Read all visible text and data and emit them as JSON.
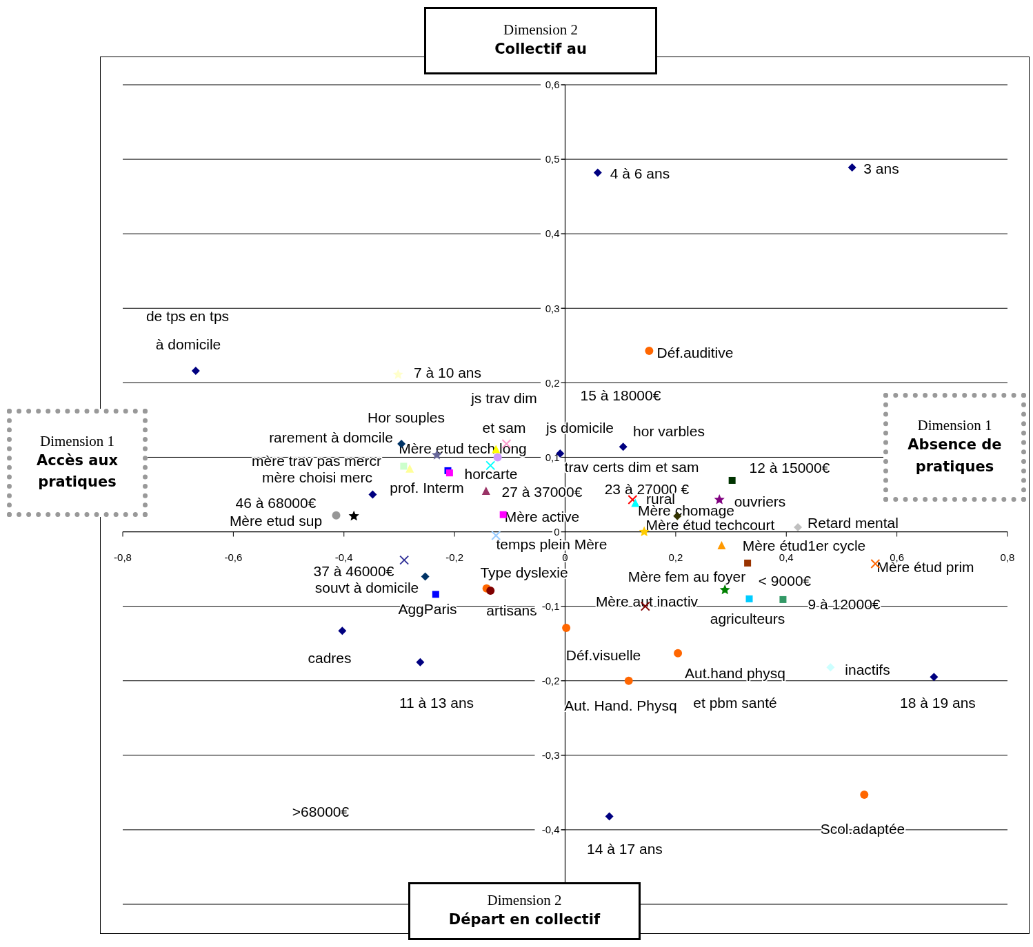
{
  "chart_data": {
    "type": "scatter",
    "xlim": [
      -0.8,
      0.8
    ],
    "xticks": [
      {
        "value": -0.8,
        "label": "-0,8"
      },
      {
        "value": -0.6,
        "label": "-0,6"
      },
      {
        "value": -0.4,
        "label": "-0,4"
      },
      {
        "value": -0.2,
        "label": "-0,2"
      },
      0,
      {
        "value": 0.2,
        "label": "0,2"
      },
      {
        "value": 0.4,
        "label": "0,4"
      },
      {
        "value": 0.6,
        "label": "0,6"
      },
      {
        "value": 0.8,
        "label": "0,8"
      }
    ],
    "ylim": [
      -0.5,
      0.6
    ],
    "yticks": [
      {
        "value": -0.5,
        "label": null
      },
      {
        "value": -0.4,
        "label": "-0,4"
      },
      {
        "value": -0.3,
        "label": "-0,3"
      },
      {
        "value": -0.2,
        "label": "-0,2"
      },
      {
        "value": -0.1,
        "label": "-0,1"
      },
      0,
      {
        "value": 0.1,
        "label": "0,1"
      },
      {
        "value": 0.2,
        "label": "0,2"
      },
      {
        "value": 0.3,
        "label": "0,3"
      },
      {
        "value": 0.4,
        "label": "0,4"
      },
      {
        "value": 0.5,
        "label": "0,5"
      },
      {
        "value": 0.6,
        "label": "0,6"
      }
    ],
    "grid": "y",
    "series": [
      {
        "marker": "diamond",
        "colors": [
          "#000080",
          "#000080",
          "#000080",
          "#003366",
          "#000080",
          "#000080",
          "#000080",
          "#333300",
          "#003366",
          "#000080",
          "#000080",
          "#000080",
          "#000080",
          "#c0c0c0",
          "#ccffff"
        ],
        "x": [
          -0.668,
          0.059,
          0.519,
          -0.296,
          -0.348,
          -0.009,
          0.105,
          0.203,
          -0.253,
          -0.403,
          -0.262,
          0.667,
          0.08,
          0.421,
          0.48
        ],
        "values": [
          0.216,
          0.482,
          0.489,
          0.118,
          0.05,
          0.105,
          0.114,
          0.021,
          -0.06,
          -0.133,
          -0.175,
          -0.195,
          -0.382,
          0.006,
          -0.182
        ]
      },
      {
        "marker": "circle",
        "colors": [
          "#ff6600",
          "#ff6600",
          "#800000",
          "#ff6600",
          "#ff6600",
          "#ff6600",
          "#ff6600",
          "#969696",
          "#cc99ff"
        ],
        "x": [
          0.152,
          -0.142,
          -0.135,
          0.002,
          0.204,
          0.115,
          0.541,
          -0.414,
          -0.122
        ],
        "values": [
          0.243,
          -0.076,
          -0.079,
          -0.129,
          -0.163,
          -0.2,
          -0.353,
          0.022,
          0.1
        ]
      },
      {
        "marker": "square",
        "colors": [
          "#ccffcc",
          "#ff00ff",
          "#ff00ff",
          "#993300"
        ],
        "x": [
          -0.292,
          -0.209,
          -0.112,
          0.33
        ],
        "values": [
          0.088,
          0.079,
          0.023,
          -0.042
        ]
      },
      {
        "marker": "triangle",
        "colors": [
          "#ffff99",
          "#993366",
          "#00ffff",
          "#ff9900",
          "#ffff00"
        ],
        "x": [
          -0.281,
          -0.143,
          0.127,
          0.283,
          -0.125
        ],
        "values": [
          0.085,
          0.055,
          0.039,
          -0.018,
          0.111
        ]
      },
      {
        "marker": "cross",
        "colors": [
          "#333399",
          "#00ffff",
          "#99ccff",
          "#800000",
          "#ff6600",
          "#ff99cc",
          "#ff0000"
        ],
        "x": [
          -0.291,
          -0.135,
          -0.125,
          0.145,
          0.561,
          -0.106,
          0.122
        ],
        "values": [
          -0.038,
          0.089,
          -0.005,
          -0.1,
          -0.043,
          0.118,
          0.043
        ]
      },
      {
        "marker": "star",
        "colors": [
          "#ffffcc",
          "#666699",
          "#000000",
          "#800080",
          "#008000",
          "#ffcc00"
        ],
        "x": [
          -0.302,
          -0.232,
          -0.382,
          0.279,
          0.289,
          0.143
        ],
        "values": [
          0.211,
          0.103,
          0.021,
          0.043,
          -0.078,
          0.0
        ]
      },
      {
        "marker": "square",
        "colors": [
          "#003300",
          "#0000ff",
          "#0000ff",
          "#00ccff",
          "#339966"
        ],
        "x": [
          0.302,
          -0.212,
          -0.234,
          0.333,
          0.394
        ],
        "values": [
          0.069,
          0.082,
          -0.084,
          -0.09,
          -0.091
        ]
      }
    ],
    "annotations": [
      "Dimension 2",
      "Collectif au",
      "Dimension 2",
      "Départ en collectif",
      "Dimension 1",
      "Accès aux pratiques",
      "Dimension 1",
      "Absence de pratiques",
      "de tps en tps",
      "à domicile",
      "4 à 6 ans",
      "3 ans",
      "Déf.auditive",
      "7 à 10 ans",
      "15 à 18000€",
      "js trav dim",
      "Hor souples",
      "et sam",
      "js domicile",
      "hor varbles",
      "rarement à domcile",
      "Mère etud tech long",
      "mère trav pas mercr",
      "mère choisi merc",
      "horcarte",
      "trav certs dim et sam",
      "12 à 15000€",
      "prof. Interm",
      "27 à 37000€",
      "23 à 27000 €",
      "rural",
      "ouvriers",
      "46 à 68000€",
      "Mère chomage",
      "Mère active",
      "Mère etud sup",
      "temps plein Mère",
      "Mère étud techcourt",
      "Retard mental",
      "Mère étud1er cycle",
      "37 à 46000€",
      "Mère étud prim",
      "Type dyslexie",
      "Mère fem au foyer",
      "souvt à domicile",
      "< 9000€",
      "Mère aut inactiv",
      "9 à 12000€",
      "AggParis",
      "artisans",
      "agriculteurs",
      "Déf.visuelle",
      "cadres",
      "inactifs",
      "Aut.hand physq",
      "11 à 13 ans",
      "Aut. Hand. Physq",
      "et pbm santé",
      "18 à 19 ans",
      ">68000€",
      "Scol.adaptée",
      "14 à 17 ans"
    ]
  }
}
